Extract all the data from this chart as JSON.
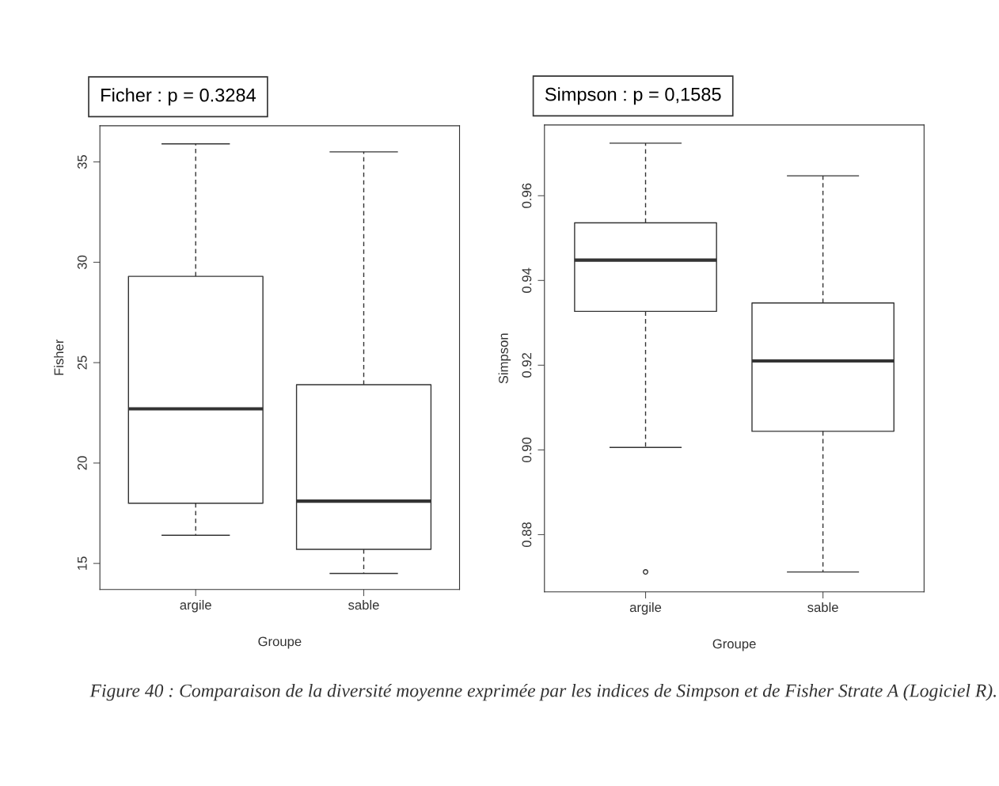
{
  "chart_data": [
    {
      "type": "box",
      "title": "Ficher : p = 0.3284",
      "xlabel": "Groupe",
      "ylabel": "Fisher",
      "categories": [
        "argile",
        "sable"
      ],
      "boxes": [
        {
          "low": 16.4,
          "q1": 18.0,
          "median": 22.7,
          "q3": 29.3,
          "high": 35.9
        },
        {
          "low": 14.5,
          "q1": 15.7,
          "median": 18.1,
          "q3": 23.9,
          "high": 35.5
        }
      ],
      "ylim": [
        13.7,
        36.8
      ],
      "yticks": [
        15,
        20,
        25,
        30,
        35
      ],
      "grid": false,
      "annotations": [
        "Figure 40 : Comparaison de la diversité moyenne exprimée par les indices de Simpson et de Fisher Strate A (Logiciel R)."
      ]
    },
    {
      "type": "box",
      "title": "Simpson : p = 0,1585",
      "xlabel": "Groupe",
      "ylabel": "Simpson",
      "categories": [
        "argile",
        "sable"
      ],
      "boxes": [
        {
          "low": 0.9006,
          "q1": 0.9327,
          "median": 0.9448,
          "q3": 0.9536,
          "high": 0.9724,
          "outliers": [
            0.8712
          ]
        },
        {
          "low": 0.8712,
          "q1": 0.9044,
          "median": 0.921,
          "q3": 0.9347,
          "high": 0.9647
        }
      ],
      "ylim": [
        0.8665,
        0.9767
      ],
      "yticks": [
        {
          "value": 0.88,
          "label": "0.88"
        },
        {
          "value": 0.9,
          "label": "0.90"
        },
        {
          "value": 0.92,
          "label": "0.92"
        },
        {
          "value": 0.94,
          "label": "0.94"
        },
        {
          "value": 0.96,
          "label": "0.96"
        }
      ],
      "grid": false
    }
  ]
}
